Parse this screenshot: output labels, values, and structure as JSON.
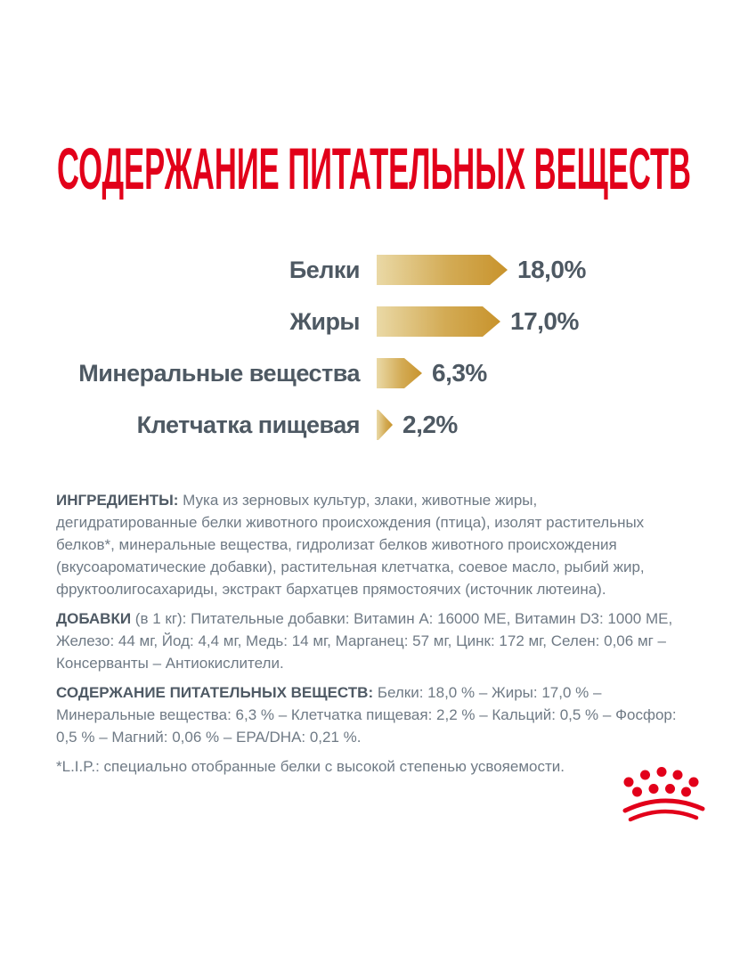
{
  "title": "СОДЕРЖАНИЕ ПИТАТЕЛЬНЫХ ВЕЩЕСТВ",
  "colors": {
    "accent_red": "#e2001a",
    "gold_light": "#ead9a6",
    "gold_dark": "#c8932c",
    "chart_label": "#4e5963",
    "body_text": "#6f7a85"
  },
  "chart_data": {
    "type": "bar",
    "orientation": "horizontal",
    "title": "СОДЕРЖАНИЕ ПИТАТЕЛЬНЫХ ВЕЩЕСТВ",
    "categories": [
      "Белки",
      "Жиры",
      "Минеральные вещества",
      "Клетчатка пищевая"
    ],
    "values": [
      18.0,
      17.0,
      6.3,
      2.2
    ],
    "value_labels": [
      "18,0%",
      "17,0%",
      "6,3%",
      "2,2%"
    ],
    "unit": "%",
    "xlim": [
      0,
      18
    ],
    "grid": false,
    "bar_style": "right-pointing gold gradient arrow"
  },
  "sections": [
    {
      "label": "ИНГРЕДИЕНТЫ:",
      "text": " Мука из зерновых культур, злаки, животные жиры,\nдегидратированные белки животного происхождения (птица), изолят растительных\nбелков*, минеральные вещества, гидролизат белков животного происхождения\n(вкусоароматические добавки), растительная клетчатка, соевое масло, рыбий жир,\nфруктоолигосахариды, экстракт бархатцев прямостоячих (источник лютеина)."
    },
    {
      "label": "ДОБАВКИ",
      "text": " (в 1 кг): Питательные добавки: Витамин А: 16000 МЕ, Витамин D3: 1000 МЕ,\nЖелезо: 44 мг, Йод: 4,4 мг, Медь: 14 мг, Марганец: 57 мг, Цинк: 172 мг, Селен: 0,06 мг –\nКонсерванты – Антиокислители."
    },
    {
      "label": "СОДЕРЖАНИЕ ПИТАТЕЛЬНЫХ ВЕЩЕСТВ:",
      "text": " Белки: 18,0 % – Жиры: 17,0 % –\nМинеральные вещества: 6,3 % – Клетчатка пищевая: 2,2 % – Кальций: 0,5 % – Фосфор:\n0,5 % – Магний: 0,06 % – EPA/DHA: 0,21 %."
    }
  ],
  "footnote": "*L.I.P.: специально отобранные белки с высокой степенью усвояемости.",
  "logo": {
    "name": "royal-canin-crown-logo",
    "color": "#e2001a"
  }
}
